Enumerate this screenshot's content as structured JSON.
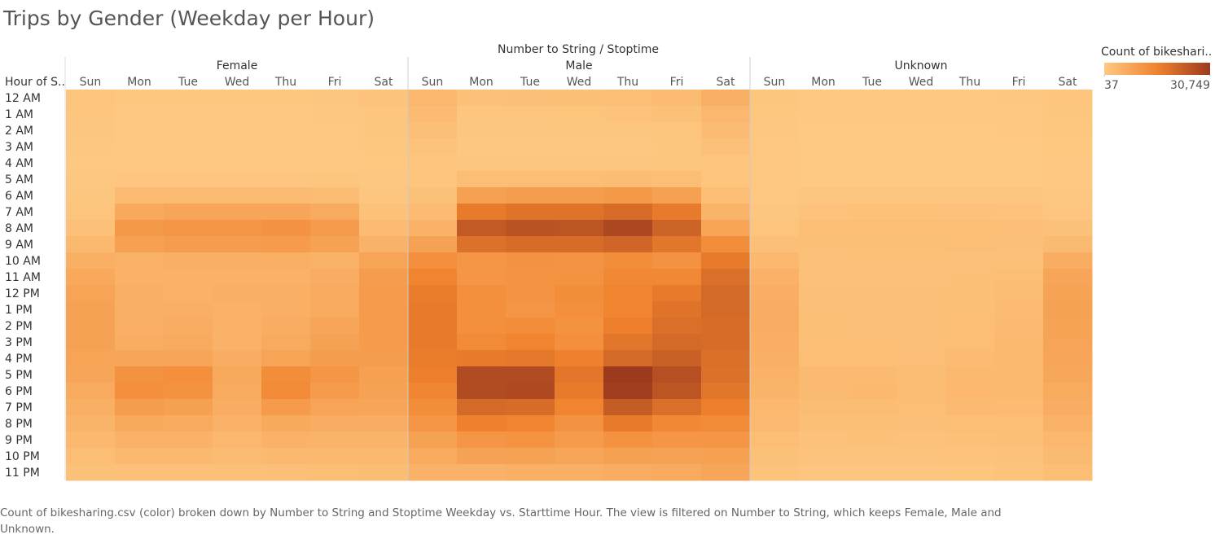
{
  "chart_data": {
    "type": "heatmap",
    "title": "Trips by Gender (Weekday per Hour)",
    "column_header": "Number to String / Stoptime",
    "row_header": "Hour of S..",
    "groups": [
      {
        "name": "Female",
        "days": [
          "Sun",
          "Mon",
          "Tue",
          "Wed",
          "Thu",
          "Fri",
          "Sat"
        ]
      },
      {
        "name": "Male",
        "days": [
          "Sun",
          "Mon",
          "Tue",
          "Wed",
          "Thu",
          "Fri",
          "Sat"
        ]
      },
      {
        "name": "Unknown",
        "days": [
          "Sun",
          "Mon",
          "Tue",
          "Wed",
          "Thu",
          "Fri",
          "Sat"
        ]
      }
    ],
    "rows": [
      "12 AM",
      "1 AM",
      "2 AM",
      "3 AM",
      "4 AM",
      "5 AM",
      "6 AM",
      "7 AM",
      "8 AM",
      "9 AM",
      "10 AM",
      "11 AM",
      "12 PM",
      "1 PM",
      "2 PM",
      "3 PM",
      "4 PM",
      "5 PM",
      "6 PM",
      "7 PM",
      "8 PM",
      "9 PM",
      "10 PM",
      "11 PM"
    ],
    "values": [
      [
        1200,
        500,
        500,
        500,
        500,
        600,
        1300,
        4000,
        2000,
        2200,
        2300,
        2500,
        3000,
        5500,
        700,
        300,
        300,
        300,
        300,
        400,
        900
      ],
      [
        900,
        300,
        300,
        300,
        300,
        400,
        1000,
        3000,
        1000,
        1100,
        1200,
        1300,
        1800,
        4000,
        500,
        200,
        200,
        200,
        200,
        250,
        700
      ],
      [
        600,
        200,
        200,
        200,
        200,
        250,
        700,
        2200,
        600,
        600,
        700,
        700,
        1200,
        3000,
        400,
        100,
        100,
        100,
        100,
        150,
        500
      ],
      [
        400,
        150,
        150,
        150,
        150,
        200,
        500,
        1400,
        400,
        400,
        450,
        450,
        700,
        2000,
        250,
        60,
        60,
        60,
        60,
        100,
        350
      ],
      [
        300,
        200,
        200,
        200,
        200,
        200,
        350,
        900,
        600,
        600,
        600,
        600,
        700,
        1200,
        150,
        37,
        40,
        40,
        40,
        50,
        200
      ],
      [
        400,
        800,
        800,
        800,
        800,
        750,
        450,
        1000,
        2500,
        2700,
        2700,
        2800,
        2500,
        1200,
        150,
        100,
        100,
        100,
        100,
        100,
        200
      ],
      [
        700,
        3000,
        3000,
        3000,
        3000,
        2800,
        900,
        1800,
        9000,
        9500,
        9500,
        10500,
        9000,
        2500,
        300,
        600,
        600,
        600,
        600,
        600,
        400
      ],
      [
        1200,
        7000,
        7500,
        7500,
        7800,
        6500,
        1600,
        3000,
        17000,
        18500,
        18500,
        20000,
        17000,
        4500,
        600,
        1500,
        1600,
        1600,
        1700,
        1500,
        800
      ],
      [
        2000,
        10500,
        11000,
        11000,
        12000,
        10000,
        3000,
        5000,
        24000,
        25500,
        25000,
        28000,
        22000,
        8000,
        1200,
        2500,
        2600,
        2600,
        2700,
        2400,
        1800
      ],
      [
        3500,
        9000,
        9500,
        9500,
        10000,
        8500,
        5000,
        8500,
        19000,
        20000,
        20000,
        21500,
        18000,
        13000,
        2200,
        2200,
        2300,
        2300,
        2400,
        2100,
        3200
      ],
      [
        5500,
        5000,
        5500,
        5500,
        5500,
        5000,
        8000,
        12500,
        11000,
        12000,
        11500,
        13000,
        12000,
        17000,
        3800,
        1800,
        1900,
        1900,
        2000,
        2000,
        6000
      ],
      [
        7000,
        5000,
        5000,
        5000,
        5000,
        6000,
        9500,
        15000,
        11000,
        11500,
        12000,
        14000,
        14000,
        19500,
        5000,
        2000,
        2000,
        2000,
        2100,
        2500,
        7500
      ],
      [
        8000,
        5500,
        5000,
        5500,
        5500,
        6500,
        10000,
        16500,
        12500,
        11500,
        13000,
        15000,
        17000,
        20500,
        5800,
        2200,
        2100,
        2200,
        2300,
        2800,
        8300
      ],
      [
        8500,
        5500,
        5500,
        5000,
        5500,
        6500,
        10000,
        17000,
        12500,
        11000,
        12500,
        15000,
        18500,
        20500,
        6000,
        2200,
        2100,
        2100,
        2300,
        3000,
        8500
      ],
      [
        8500,
        5500,
        6000,
        5000,
        6000,
        7500,
        10000,
        17000,
        12500,
        13000,
        12000,
        16000,
        19500,
        20000,
        6000,
        2300,
        2200,
        2100,
        2400,
        3200,
        8300
      ],
      [
        8500,
        6000,
        6500,
        5000,
        6500,
        8500,
        10000,
        17000,
        13500,
        15000,
        12500,
        18000,
        20500,
        20000,
        5800,
        2400,
        2400,
        2200,
        2600,
        3400,
        8000
      ],
      [
        8000,
        7500,
        7500,
        6000,
        8000,
        9500,
        9500,
        16500,
        17000,
        17500,
        15500,
        20500,
        22500,
        19500,
        5500,
        2600,
        2700,
        2400,
        3000,
        3500,
        7800
      ],
      [
        7500,
        12000,
        12500,
        7000,
        13000,
        11000,
        9000,
        16000,
        27000,
        27000,
        18000,
        30749,
        26000,
        19000,
        5000,
        3200,
        3300,
        2800,
        3600,
        3500,
        7300
      ],
      [
        6500,
        12500,
        12000,
        6500,
        13500,
        10000,
        8500,
        14500,
        27000,
        27500,
        17000,
        30000,
        25000,
        18000,
        4500,
        3300,
        3400,
        2800,
        3700,
        3400,
        6800
      ],
      [
        5500,
        9500,
        9000,
        6000,
        10000,
        8000,
        7500,
        13000,
        20500,
        20000,
        15000,
        23500,
        19500,
        16000,
        3800,
        2800,
        2900,
        2500,
        3200,
        3000,
        6000
      ],
      [
        4500,
        7000,
        6500,
        5000,
        7000,
        6000,
        6000,
        11000,
        15500,
        15000,
        12000,
        17000,
        14000,
        13500,
        3200,
        2300,
        2300,
        2100,
        2600,
        2600,
        5000
      ],
      [
        3500,
        5000,
        5000,
        4000,
        5000,
        4500,
        4500,
        8500,
        11000,
        11500,
        10000,
        12000,
        11000,
        11000,
        2500,
        1700,
        1800,
        1700,
        1900,
        2100,
        4000
      ],
      [
        2500,
        3500,
        3500,
        3000,
        3500,
        3500,
        3500,
        6500,
        8500,
        8500,
        7500,
        9000,
        8500,
        9000,
        1800,
        1300,
        1300,
        1300,
        1400,
        1700,
        3200
      ],
      [
        1800,
        2000,
        2000,
        2000,
        2200,
        2500,
        2800,
        5000,
        5000,
        5500,
        5500,
        6000,
        6500,
        7500,
        1300,
        800,
        800,
        800,
        900,
        1300,
        2500
      ]
    ],
    "colors": [
      "#fec983",
      "#f0822d",
      "#9c3a1e"
    ],
    "legend_title": "Count of bikeshari..",
    "clim": [
      37,
      30749
    ],
    "cticks": [
      37,
      {
        "value": 30749,
        "label": "30,749"
      }
    ],
    "caption": "Count of bikesharing.csv (color) broken down by Number to String and Stoptime Weekday vs. Starttime Hour. The view is filtered on Number to String, which keeps Female, Male and Unknown."
  }
}
